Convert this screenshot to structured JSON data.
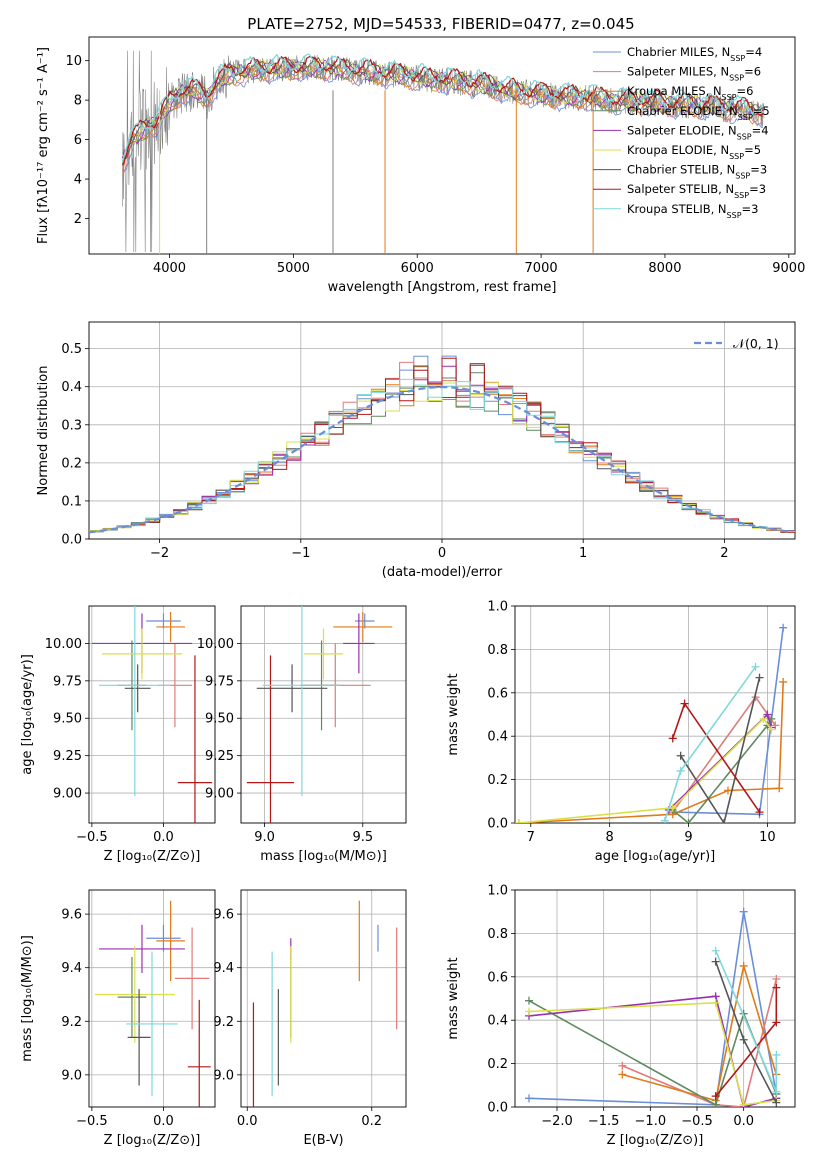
{
  "title": "PLATE=2752, MJD=54533, FIBERID=0477, z=0.045",
  "colors": {
    "chabrier_miles": "#6a8fd8",
    "salpeter_miles": "#e07b7b",
    "kroupa_miles": "#e07b1c",
    "chabrier_elodie": "#5f8a5f",
    "salpeter_elodie": "#9a30b0",
    "kroupa_elodie": "#d9e04a",
    "chabrier_stelib": "#555555",
    "salpeter_stelib": "#b01818",
    "kroupa_stelib": "#7fd8dc",
    "gaussian": "#6a8fd8",
    "observed": "#808080",
    "grid": "#b0b0b0"
  },
  "chart_data": [
    {
      "id": "spectrum",
      "type": "line",
      "xlabel": "wavelength [Angstrom, rest frame]",
      "ylabel": "Flux [fλ10⁻¹⁷ erg cm⁻² s⁻¹ A⁻¹]",
      "xlim": [
        3350,
        9050
      ],
      "ylim": [
        0.2,
        11.2
      ],
      "xticks": [
        "4000",
        "5000",
        "6000",
        "7000",
        "8000",
        "9000"
      ],
      "yticks": [
        "2",
        "4",
        "6",
        "8",
        "10"
      ],
      "grid": false,
      "legend_position": "right",
      "legend": [
        "Chabrier MILES, N_SSP=4",
        "Salpeter MILES, N_SSP=6",
        "Kroupa MILES, N_SSP=6",
        "Chabrier ELODIE, N_SSP=5",
        "Salpeter ELODIE, N_SSP=4",
        "Kroupa ELODIE, N_SSP=5",
        "Chabrier STELIB, N_SSP=3",
        "Salpeter STELIB, N_SSP=3",
        "Kroupa STELIB, N_SSP=3"
      ],
      "model_envelope": {
        "x": [
          3620,
          3700,
          3800,
          3900,
          4000,
          4100,
          4200,
          4300,
          4400,
          4500,
          4700,
          5000,
          5300,
          5600,
          5900,
          6200,
          6500,
          6800,
          7100,
          7400,
          7700,
          8000,
          8300,
          8600,
          8800
        ],
        "y": [
          4.8,
          6.0,
          6.5,
          6.9,
          7.8,
          8.4,
          8.5,
          8.1,
          9.0,
          9.3,
          9.5,
          9.6,
          9.6,
          9.4,
          9.2,
          9.0,
          8.8,
          8.4,
          8.2,
          8.1,
          7.9,
          7.8,
          7.7,
          7.5,
          7.3
        ]
      },
      "absorption_dips_x": [
        3920,
        4300,
        5320,
        5740,
        6800,
        7420
      ]
    },
    {
      "id": "residual-histogram",
      "type": "line",
      "xlabel": "(data-model)/error",
      "ylabel": "Normed distribution",
      "xlim": [
        -2.5,
        2.5
      ],
      "ylim": [
        0,
        0.57
      ],
      "xticks": [
        "−2",
        "−1",
        "0",
        "1",
        "2"
      ],
      "yticks": [
        "0.0",
        "0.1",
        "0.2",
        "0.3",
        "0.4",
        "0.5"
      ],
      "grid": true,
      "legend_position": "top-right",
      "legend": [
        "𝒩(0, 1)"
      ]
    },
    {
      "id": "age-vs-z",
      "type": "scatter",
      "xlabel": "Z [log₁₀(Z/Z⊙)]",
      "ylabel": "age  [log₁₀(age/yr)]",
      "xlim": [
        -0.52,
        0.36
      ],
      "ylim": [
        8.8,
        10.25
      ],
      "xticks": [
        "−0.5",
        "0.0"
      ],
      "yticks": [
        "9.00",
        "9.25",
        "9.50",
        "9.75",
        "10.00"
      ],
      "points": [
        {
          "x": 0.0,
          "y": 10.15,
          "xerr": 0.12,
          "yerr": 0.05
        },
        {
          "x": 0.08,
          "y": 9.72,
          "xerr": 0.12,
          "yerr": 0.28
        },
        {
          "x": 0.05,
          "y": 10.11,
          "xerr": 0.1,
          "yerr": 0.1
        },
        {
          "x": -0.22,
          "y": 9.72,
          "xerr": 0.1,
          "yerr": 0.3
        },
        {
          "x": -0.15,
          "y": 10.0,
          "xerr": 0.35,
          "yerr": 0.2
        },
        {
          "x": -0.15,
          "y": 9.93,
          "xerr": 0.28,
          "yerr": 0.17
        },
        {
          "x": -0.18,
          "y": 9.7,
          "xerr": 0.09,
          "yerr": 0.16
        },
        {
          "x": 0.22,
          "y": 9.07,
          "xerr": 0.12,
          "yerr": 0.85
        },
        {
          "x": -0.2,
          "y": 9.72,
          "xerr": 0.25,
          "yerr": 0.74
        }
      ]
    },
    {
      "id": "age-vs-mass",
      "type": "scatter",
      "xlabel": "mass [log₁₀(M/M⊙)]",
      "ylabel": "",
      "xlim": [
        8.88,
        9.72
      ],
      "ylim": [
        8.8,
        10.25
      ],
      "xticks": [
        "9.0",
        "9.5"
      ],
      "yticks": [
        "9.00",
        "9.25",
        "9.50",
        "9.75",
        "10.00"
      ],
      "points": [
        {
          "x": 9.51,
          "y": 10.15,
          "xerr": 0.05,
          "yerr": 0.05
        },
        {
          "x": 9.36,
          "y": 9.72,
          "xerr": 0.18,
          "yerr": 0.28
        },
        {
          "x": 9.5,
          "y": 10.11,
          "xerr": 0.15,
          "yerr": 0.1
        },
        {
          "x": 9.29,
          "y": 9.72,
          "xerr": 0.1,
          "yerr": 0.3
        },
        {
          "x": 9.48,
          "y": 10.0,
          "xerr": 0.08,
          "yerr": 0.2
        },
        {
          "x": 9.3,
          "y": 9.93,
          "xerr": 0.1,
          "yerr": 0.17
        },
        {
          "x": 9.14,
          "y": 9.7,
          "xerr": 0.18,
          "yerr": 0.16
        },
        {
          "x": 9.03,
          "y": 9.07,
          "xerr": 0.12,
          "yerr": 0.85
        },
        {
          "x": 9.19,
          "y": 9.72,
          "xerr": 0.2,
          "yerr": 0.74
        }
      ]
    },
    {
      "id": "mass-weight-vs-age",
      "type": "line",
      "xlabel": "age  [log₁₀(age/yr)]",
      "ylabel": "mass weight",
      "xlim": [
        6.8,
        10.35
      ],
      "ylim": [
        0,
        1
      ],
      "xticks": [
        "7",
        "8",
        "9",
        "10"
      ],
      "yticks": [
        "0.0",
        "0.2",
        "0.4",
        "0.6",
        "0.8",
        "1.0"
      ],
      "grid": true,
      "series": [
        {
          "color_key": "chabrier_miles",
          "x": [
            8.8,
            9.9,
            10.2
          ],
          "y": [
            0.05,
            0.04,
            0.9
          ]
        },
        {
          "color_key": "salpeter_miles",
          "x": [
            8.8,
            9.85,
            10.1
          ],
          "y": [
            0.05,
            0.58,
            0.45
          ]
        },
        {
          "color_key": "kroupa_miles",
          "x": [
            6.85,
            8.8,
            9.5,
            10.15,
            10.2
          ],
          "y": [
            0.0,
            0.04,
            0.15,
            0.16,
            0.65
          ]
        },
        {
          "color_key": "chabrier_elodie",
          "x": [
            8.8,
            9.0,
            10.0,
            10.05
          ],
          "y": [
            0.06,
            0.0,
            0.45,
            0.48
          ]
        },
        {
          "color_key": "salpeter_elodie",
          "x": [
            8.75,
            10.0,
            10.05
          ],
          "y": [
            0.06,
            0.5,
            0.44
          ]
        },
        {
          "color_key": "kroupa_elodie",
          "x": [
            6.85,
            8.8,
            9.95,
            10.05
          ],
          "y": [
            0.0,
            0.07,
            0.48,
            0.43
          ]
        },
        {
          "color_key": "chabrier_stelib",
          "x": [
            8.9,
            9.45,
            9.9
          ],
          "y": [
            0.31,
            0.0,
            0.67
          ]
        },
        {
          "color_key": "salpeter_stelib",
          "x": [
            8.8,
            8.95,
            9.9
          ],
          "y": [
            0.39,
            0.55,
            0.05
          ]
        },
        {
          "color_key": "kroupa_stelib",
          "x": [
            8.7,
            8.9,
            9.85
          ],
          "y": [
            0.01,
            0.24,
            0.72
          ]
        }
      ]
    },
    {
      "id": "mass-vs-z",
      "type": "scatter",
      "xlabel": "Z [log₁₀(Z/Z⊙)]",
      "ylabel": "mass [log₁₀(M/M⊙)]",
      "xlim": [
        -0.52,
        0.36
      ],
      "ylim": [
        8.88,
        9.69
      ],
      "xticks": [
        "−0.5",
        "0.0"
      ],
      "yticks": [
        "9.0",
        "9.2",
        "9.4",
        "9.6"
      ],
      "points": [
        {
          "x": 0.0,
          "y": 9.51,
          "xerr": 0.12,
          "yerr": 0.05
        },
        {
          "x": 0.2,
          "y": 9.36,
          "xerr": 0.12,
          "yerr": 0.19
        },
        {
          "x": 0.05,
          "y": 9.5,
          "xerr": 0.1,
          "yerr": 0.15
        },
        {
          "x": -0.22,
          "y": 9.29,
          "xerr": 0.1,
          "yerr": 0.15
        },
        {
          "x": -0.15,
          "y": 9.47,
          "xerr": 0.3,
          "yerr": 0.09
        },
        {
          "x": -0.2,
          "y": 9.3,
          "xerr": 0.28,
          "yerr": 0.18
        },
        {
          "x": -0.17,
          "y": 9.14,
          "xerr": 0.08,
          "yerr": 0.18
        },
        {
          "x": 0.25,
          "y": 9.03,
          "xerr": 0.08,
          "yerr": 0.25
        },
        {
          "x": -0.08,
          "y": 9.19,
          "xerr": 0.18,
          "yerr": 0.27
        }
      ]
    },
    {
      "id": "mass-vs-ebv",
      "type": "scatter",
      "xlabel": "E(B-V)",
      "ylabel": "",
      "xlim": [
        -0.01,
        0.255
      ],
      "ylim": [
        8.88,
        9.69
      ],
      "xticks": [
        "0.0",
        "0.2"
      ],
      "yticks": [
        "9.0",
        "9.2",
        "9.4",
        "9.6"
      ],
      "points": [
        {
          "x": 0.21,
          "y": 9.51,
          "xerr": 0,
          "yerr": 0.05
        },
        {
          "x": 0.24,
          "y": 9.36,
          "xerr": 0,
          "yerr": 0.19
        },
        {
          "x": 0.18,
          "y": 9.5,
          "xerr": 0,
          "yerr": 0.15
        },
        {
          "x": 0.07,
          "y": 9.29,
          "xerr": 0,
          "yerr": 0.15
        },
        {
          "x": 0.07,
          "y": 9.47,
          "xerr": 0,
          "yerr": 0.04
        },
        {
          "x": 0.07,
          "y": 9.3,
          "xerr": 0,
          "yerr": 0.18
        },
        {
          "x": 0.05,
          "y": 9.14,
          "xerr": 0,
          "yerr": 0.18
        },
        {
          "x": 0.01,
          "y": 9.03,
          "xerr": 0,
          "yerr": 0.24
        },
        {
          "x": 0.04,
          "y": 9.19,
          "xerr": 0,
          "yerr": 0.27
        }
      ]
    },
    {
      "id": "mass-weight-vs-z",
      "type": "line",
      "xlabel": "Z [log₁₀(Z/Z⊙)]",
      "ylabel": "mass weight",
      "xlim": [
        -2.45,
        0.55
      ],
      "ylim": [
        0,
        1
      ],
      "xticks": [
        "−2.0",
        "−1.5",
        "−1.0",
        "−0.5",
        "0.0"
      ],
      "yticks": [
        "0.0",
        "0.2",
        "0.4",
        "0.6",
        "0.8",
        "1.0"
      ],
      "grid": true,
      "series": [
        {
          "color_key": "chabrier_miles",
          "x": [
            -2.3,
            -0.3,
            0.0,
            0.35
          ],
          "y": [
            0.04,
            0.01,
            0.9,
            0.06
          ]
        },
        {
          "color_key": "salpeter_miles",
          "x": [
            -1.3,
            -0.3,
            0.0,
            0.35
          ],
          "y": [
            0.19,
            0.01,
            0.0,
            0.59
          ]
        },
        {
          "color_key": "kroupa_miles",
          "x": [
            -1.3,
            -0.3,
            0.0,
            0.35
          ],
          "y": [
            0.15,
            0.03,
            0.65,
            0.15
          ]
        },
        {
          "color_key": "chabrier_elodie",
          "x": [
            -2.3,
            -0.3,
            0.0,
            0.35
          ],
          "y": [
            0.49,
            0.01,
            0.43,
            0.06
          ]
        },
        {
          "color_key": "salpeter_elodie",
          "x": [
            -2.3,
            -0.3,
            0.0,
            0.35
          ],
          "y": [
            0.42,
            0.51,
            0.0,
            0.04
          ]
        },
        {
          "color_key": "kroupa_elodie",
          "x": [
            -2.3,
            -0.3,
            0.0,
            0.35
          ],
          "y": [
            0.44,
            0.48,
            0.01,
            0.03
          ]
        },
        {
          "color_key": "chabrier_stelib",
          "x": [
            -0.3,
            0.0,
            0.35
          ],
          "y": [
            0.67,
            0.31,
            0.02
          ]
        },
        {
          "color_key": "salpeter_stelib",
          "x": [
            -0.3,
            0.35,
            0.35
          ],
          "y": [
            0.05,
            0.39,
            0.55
          ]
        },
        {
          "color_key": "kroupa_stelib",
          "x": [
            -0.3,
            0.35,
            0.35
          ],
          "y": [
            0.72,
            0.07,
            0.24
          ]
        }
      ]
    }
  ]
}
